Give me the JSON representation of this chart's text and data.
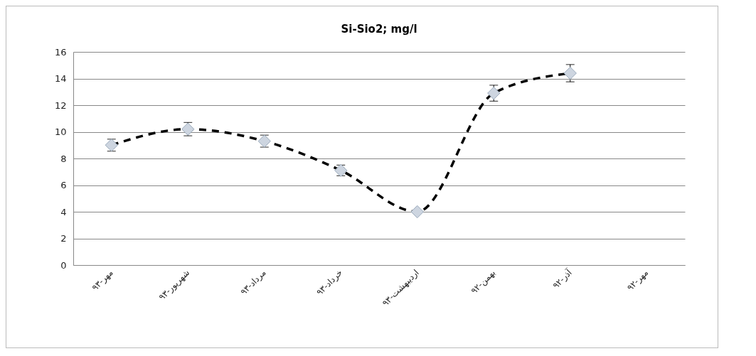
{
  "chart_data": {
    "type": "line",
    "title": "Si-Sio2; mg/l",
    "categories": [
      "مهر-۹۳",
      "شهریور-۹۳",
      "مرداد-۹۳",
      "خرداد-۹۳",
      "اردیبهشت-۹۳",
      "بهمن-۹۲",
      "آذر-۹۲",
      "مهر-۹۲"
    ],
    "series": [
      {
        "color": "#000000",
        "values": [
          9.0,
          10.2,
          9.3,
          7.1,
          4.0,
          12.9,
          14.4,
          null
        ],
        "errors": [
          0.45,
          0.5,
          0.45,
          0.4,
          null,
          0.6,
          0.65,
          null
        ]
      }
    ],
    "ylim": [
      0,
      16
    ],
    "yticks": [
      0,
      2,
      4,
      6,
      8,
      10,
      12,
      14,
      16
    ],
    "grid": "y",
    "marker": "diamond",
    "line_style": "dashed"
  }
}
